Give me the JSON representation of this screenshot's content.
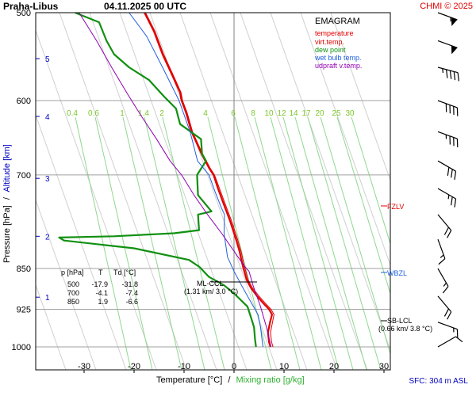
{
  "chart_data": {
    "type": "emagram",
    "station": "Praha-Libus",
    "datetime": "04.11.2025 00 UTC",
    "copyright": "CHMI © 2025",
    "legend": {
      "title": "EMAGRAM",
      "items": [
        {
          "label": "temperature",
          "color": "#e00000"
        },
        {
          "label": "virt.temp.",
          "color": "#e00000"
        },
        {
          "label": "dew point",
          "color": "#109010"
        },
        {
          "label": "wet bulb temp.",
          "color": "#2060e0"
        },
        {
          "label": "udpraft v.temp.",
          "color": "#9000b0"
        }
      ]
    },
    "pressure_ticks": [
      500,
      600,
      700,
      850,
      925,
      1000
    ],
    "altitude_ticks": [
      {
        "km": 5,
        "p": 550
      },
      {
        "km": 4,
        "p": 620
      },
      {
        "km": 3,
        "p": 705
      },
      {
        "km": 2,
        "p": 795
      },
      {
        "km": 1,
        "p": 902
      }
    ],
    "temperature_ticks": [
      -30,
      -20,
      -10,
      0,
      10,
      20,
      30
    ],
    "mixing_ratio_labels": [
      "0.4",
      "0.6",
      "1",
      "1.4",
      "2",
      "4",
      "6",
      "8",
      "10",
      "12",
      "14",
      "17",
      "20",
      "25",
      "30"
    ],
    "ylabel_pressure": "Pressure [hPa]",
    "ylabel_sep": "/",
    "ylabel_altitude": "Altitude [km]",
    "xlabel_temp": "Temperature [°C]",
    "xlabel_sep": "/",
    "xlabel_mix": "Mixing ratio [g/kg]",
    "sfc_label": "SFC: 304 m ASL",
    "table": {
      "header": [
        "p [hPa]",
        "T",
        "Td [°C]"
      ],
      "rows": [
        [
          "500",
          "-17.9",
          "-31.8"
        ],
        [
          "700",
          "-4.1",
          "-7.4"
        ],
        [
          "850",
          "1.9",
          "-6.6"
        ]
      ]
    },
    "annotations": {
      "fzlv": "FZLV",
      "wbzl": "WBZL",
      "ml_ccl": "ML-CCL",
      "ml_ccl_sub": "(1.31 km/ 3.0 °C)",
      "sb_lcl": "SB-LCL",
      "sb_lcl_sub": "(0.66 km/ 3.8 °C)"
    },
    "series": [
      {
        "name": "temperature",
        "points": [
          [
            -17.9,
            500
          ],
          [
            -16,
            520
          ],
          [
            -14.3,
            545
          ],
          [
            -12.3,
            570
          ],
          [
            -10.8,
            590
          ],
          [
            -10.5,
            600
          ],
          [
            -9.6,
            615
          ],
          [
            -8.5,
            640
          ],
          [
            -6.5,
            670
          ],
          [
            -5,
            690
          ],
          [
            -4.1,
            700
          ],
          [
            -3.2,
            720
          ],
          [
            -2,
            745
          ],
          [
            -0.8,
            770
          ],
          [
            0.4,
            800
          ],
          [
            1.1,
            820
          ],
          [
            1.6,
            840
          ],
          [
            1.9,
            850
          ],
          [
            2.2,
            860
          ],
          [
            2.5,
            870
          ],
          [
            3.4,
            885
          ],
          [
            4.6,
            900
          ],
          [
            6,
            915
          ],
          [
            7,
            925
          ],
          [
            7.6,
            935
          ],
          [
            7.2,
            950
          ],
          [
            6.8,
            970
          ],
          [
            7,
            990
          ],
          [
            7.3,
            1000
          ]
        ]
      },
      {
        "name": "virt.temp.",
        "points": [
          [
            -17.7,
            500
          ],
          [
            -15.8,
            520
          ],
          [
            -14.1,
            545
          ],
          [
            -12.1,
            570
          ],
          [
            -10.6,
            590
          ],
          [
            -10.3,
            600
          ],
          [
            -9.4,
            615
          ],
          [
            -8.3,
            640
          ],
          [
            -6.3,
            670
          ],
          [
            -4.8,
            690
          ],
          [
            -3.9,
            700
          ],
          [
            -2.9,
            720
          ],
          [
            -1.7,
            745
          ],
          [
            -0.5,
            770
          ],
          [
            0.7,
            800
          ],
          [
            1.4,
            820
          ],
          [
            1.9,
            840
          ],
          [
            2.2,
            850
          ],
          [
            2.5,
            860
          ],
          [
            2.8,
            870
          ],
          [
            3.7,
            885
          ],
          [
            5,
            900
          ],
          [
            6.4,
            915
          ],
          [
            7.4,
            925
          ],
          [
            8,
            935
          ],
          [
            7.7,
            950
          ],
          [
            7.3,
            970
          ],
          [
            7.5,
            990
          ],
          [
            7.8,
            1000
          ]
        ]
      },
      {
        "name": "dew point",
        "points": [
          [
            -31.8,
            500
          ],
          [
            -27,
            510
          ],
          [
            -25.5,
            530
          ],
          [
            -24,
            545
          ],
          [
            -21,
            560
          ],
          [
            -17,
            575
          ],
          [
            -14,
            595
          ],
          [
            -11.6,
            610
          ],
          [
            -10.8,
            630
          ],
          [
            -6.6,
            650
          ],
          [
            -6.4,
            670
          ],
          [
            -5.6,
            680
          ],
          [
            -7.4,
            700
          ],
          [
            -7.2,
            730
          ],
          [
            -4.5,
            755
          ],
          [
            -7.2,
            760
          ],
          [
            -7,
            785
          ],
          [
            -12,
            790
          ],
          [
            -24,
            795
          ],
          [
            -35,
            797
          ],
          [
            -34,
            802
          ],
          [
            -20,
            815
          ],
          [
            -9,
            835
          ],
          [
            -6.8,
            848
          ],
          [
            -6.6,
            850
          ],
          [
            -5,
            865
          ],
          [
            -2,
            880
          ],
          [
            0,
            895
          ],
          [
            2.7,
            920
          ],
          [
            3.2,
            935
          ],
          [
            4,
            960
          ],
          [
            4.2,
            985
          ],
          [
            4.4,
            1000
          ]
        ]
      },
      {
        "name": "wet bulb temp.",
        "points": [
          [
            -21,
            500
          ],
          [
            -17.5,
            525
          ],
          [
            -14.3,
            560
          ],
          [
            -11,
            600
          ],
          [
            -8.8,
            640
          ],
          [
            -7.3,
            680
          ],
          [
            -5,
            700
          ],
          [
            -3.8,
            725
          ],
          [
            -2.5,
            750
          ],
          [
            -1.9,
            760
          ],
          [
            -2,
            790
          ],
          [
            -1.3,
            830
          ],
          [
            0,
            855
          ],
          [
            1.5,
            880
          ],
          [
            3,
            905
          ],
          [
            4.8,
            935
          ],
          [
            5.3,
            960
          ],
          [
            5.6,
            985
          ],
          [
            5.8,
            1000
          ]
        ]
      },
      {
        "name": "udpraft v.temp.",
        "points": [
          [
            -31,
            500
          ],
          [
            -27.5,
            530
          ],
          [
            -24.5,
            560
          ],
          [
            -21.5,
            590
          ],
          [
            -18.5,
            620
          ],
          [
            -15.5,
            650
          ],
          [
            -12.8,
            680
          ],
          [
            -10.5,
            700
          ],
          [
            -8,
            730
          ],
          [
            -5.3,
            760
          ],
          [
            -2.5,
            790
          ],
          [
            0,
            820
          ],
          [
            2,
            845
          ],
          [
            3,
            855
          ],
          [
            3.8,
            880
          ],
          [
            5.3,
            920
          ],
          [
            6.5,
            960
          ],
          [
            7.4,
            1000
          ]
        ]
      }
    ],
    "wind_barbs": [
      {
        "p": 500,
        "dir": 290,
        "kt": 55
      },
      {
        "p": 530,
        "dir": 290,
        "kt": 50
      },
      {
        "p": 560,
        "dir": 285,
        "kt": 45
      },
      {
        "p": 600,
        "dir": 290,
        "kt": 40
      },
      {
        "p": 640,
        "dir": 290,
        "kt": 35
      },
      {
        "p": 680,
        "dir": 300,
        "kt": 30
      },
      {
        "p": 720,
        "dir": 300,
        "kt": 25
      },
      {
        "p": 760,
        "dir": 320,
        "kt": 20
      },
      {
        "p": 800,
        "dir": 340,
        "kt": 15
      },
      {
        "p": 850,
        "dir": 330,
        "kt": 15
      },
      {
        "p": 900,
        "dir": 320,
        "kt": 20
      },
      {
        "p": 950,
        "dir": 290,
        "kt": 15
      },
      {
        "p": 1000,
        "dir": 240,
        "kt": 10
      }
    ]
  }
}
